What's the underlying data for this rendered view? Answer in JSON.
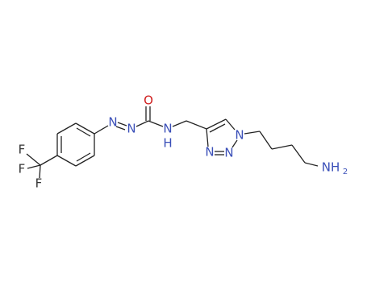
{
  "atoms": {
    "fluorine": [
      "F",
      "F",
      "F"
    ],
    "azo_nitrogen": [
      "N",
      "N"
    ],
    "carbonyl_oxygen": "O",
    "amide_nitrogen": "N",
    "amide_hydrogen": "H",
    "triazole_nitrogen": [
      "N",
      "N",
      "N"
    ],
    "amine": {
      "label": "NH",
      "subscript": "2"
    }
  }
}
